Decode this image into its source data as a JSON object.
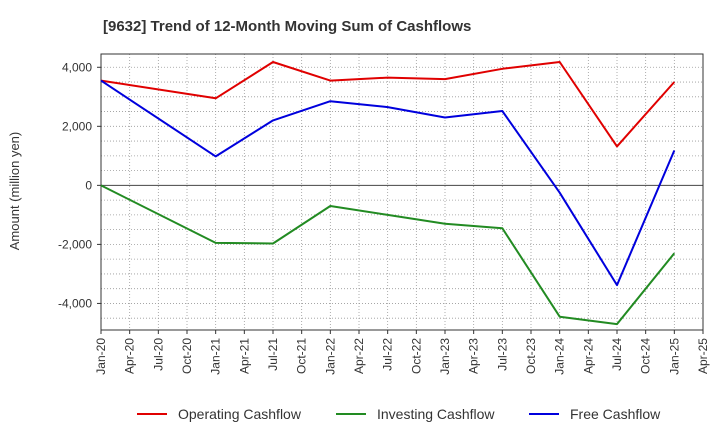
{
  "chart_data": {
    "type": "line",
    "title": "[9632]  Trend of 12-Month Moving Sum of Cashflows",
    "xlabel": "",
    "ylabel": "Amount (million yen)",
    "x_ticks": [
      "Jan-20",
      "Apr-20",
      "Jul-20",
      "Oct-20",
      "Jan-21",
      "Apr-21",
      "Jul-21",
      "Oct-21",
      "Jan-22",
      "Apr-22",
      "Jul-22",
      "Oct-22",
      "Jan-23",
      "Apr-23",
      "Jul-23",
      "Oct-23",
      "Jan-24",
      "Apr-24",
      "Jul-24",
      "Oct-24",
      "Jan-25",
      "Apr-25"
    ],
    "y_ticks": [
      "4,000",
      "2,000",
      "0",
      "-2,000",
      "-4,000"
    ],
    "y_tick_values": [
      4000,
      2000,
      0,
      -2000,
      -4000
    ],
    "ylim": [
      -4900,
      4450
    ],
    "grid": true,
    "legend_position": "bottom",
    "colors": {
      "operating": "#e00000",
      "investing": "#228b22",
      "free": "#0000dd"
    },
    "series": [
      {
        "name": "Operating Cashflow",
        "color": "#e00000",
        "points": [
          [
            "Jan-20",
            3550
          ],
          [
            "Jan-21",
            2950
          ],
          [
            "Jul-21",
            4180
          ],
          [
            "Jan-22",
            3550
          ],
          [
            "Jul-22",
            3650
          ],
          [
            "Jan-23",
            3600
          ],
          [
            "Jul-23",
            3950
          ],
          [
            "Jan-24",
            4180
          ],
          [
            "Jul-24",
            1320
          ],
          [
            "Jan-25",
            3500
          ]
        ]
      },
      {
        "name": "Investing Cashflow",
        "color": "#228b22",
        "points": [
          [
            "Jan-20",
            0
          ],
          [
            "Jan-21",
            -1950
          ],
          [
            "Jul-21",
            -1970
          ],
          [
            "Jan-22",
            -700
          ],
          [
            "Jul-22",
            -1000
          ],
          [
            "Jan-23",
            -1300
          ],
          [
            "Jul-23",
            -1450
          ],
          [
            "Jan-24",
            -4450
          ],
          [
            "Jul-24",
            -4700
          ],
          [
            "Jan-25",
            -2300
          ]
        ]
      },
      {
        "name": "Free Cashflow",
        "color": "#0000dd",
        "points": [
          [
            "Jan-20",
            3550
          ],
          [
            "Jan-21",
            980
          ],
          [
            "Jul-21",
            2200
          ],
          [
            "Jan-22",
            2850
          ],
          [
            "Jul-22",
            2650
          ],
          [
            "Jan-23",
            2300
          ],
          [
            "Jul-23",
            2520
          ],
          [
            "Jan-24",
            -250
          ],
          [
            "Jul-24",
            -3380
          ],
          [
            "Jan-25",
            1180
          ]
        ]
      }
    ]
  }
}
